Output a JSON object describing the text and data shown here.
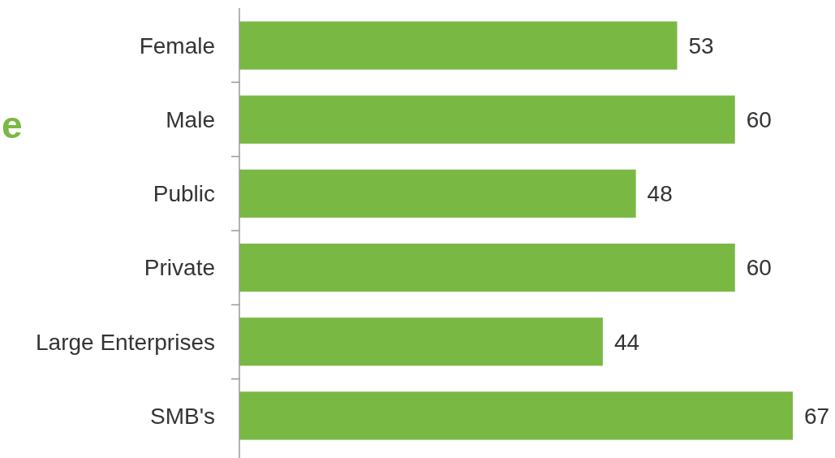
{
  "chart_data": {
    "type": "bar",
    "orientation": "horizontal",
    "title": "e",
    "categories": [
      "Female",
      "Male",
      "Public",
      "Private",
      "Large Enterprises",
      "SMB's"
    ],
    "values": [
      53,
      60,
      48,
      60,
      44,
      67
    ],
    "color": "#7ab844",
    "data_labels": true
  }
}
